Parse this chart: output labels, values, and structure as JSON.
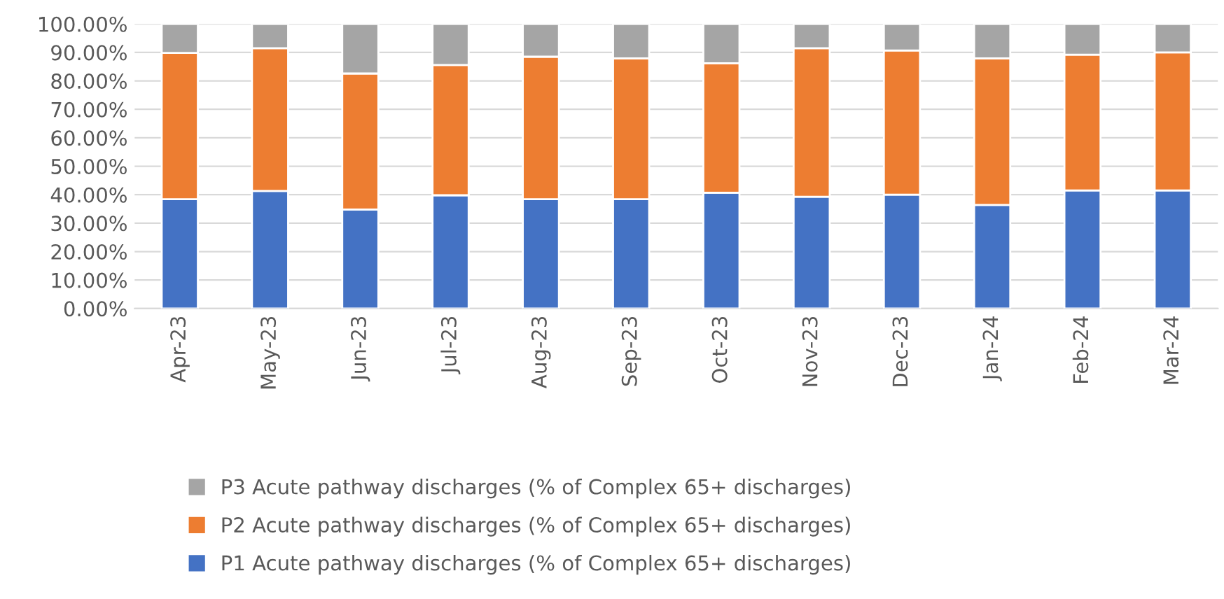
{
  "chart_data": {
    "type": "bar",
    "stacked": true,
    "categories": [
      "Apr-23",
      "May-23",
      "Jun-23",
      "Jul-23",
      "Aug-23",
      "Sep-23",
      "Oct-23",
      "Nov-23",
      "Dec-23",
      "Jan-24",
      "Feb-24",
      "Mar-24"
    ],
    "series": [
      {
        "name": "P1 Acute pathway discharges (% of Complex 65+ discharges)",
        "color": "#4472c4",
        "values": [
          38.4,
          41.3,
          34.8,
          39.8,
          38.4,
          38.4,
          40.7,
          39.3,
          40.0,
          36.4,
          41.5,
          41.5
        ]
      },
      {
        "name": "P2 Acute pathway discharges (% of Complex 65+ discharges)",
        "color": "#ed7d31",
        "values": [
          51.4,
          50.2,
          47.8,
          45.8,
          50.1,
          49.5,
          45.5,
          52.2,
          50.7,
          51.5,
          47.7,
          48.5
        ]
      },
      {
        "name": "P3 Acute pathway discharges (% of Complex 65+ discharges)",
        "color": "#a5a5a5",
        "values": [
          10.2,
          8.5,
          17.4,
          14.4,
          11.5,
          12.1,
          13.8,
          8.5,
          9.3,
          12.1,
          10.8,
          10.0
        ]
      }
    ],
    "ylim": [
      0,
      100
    ],
    "yticks": [
      {
        "value": 0,
        "label": "0.00%"
      },
      {
        "value": 10,
        "label": "10.00%"
      },
      {
        "value": 20,
        "label": "20.00%"
      },
      {
        "value": 30,
        "label": "30.00%"
      },
      {
        "value": 40,
        "label": "40.00%"
      },
      {
        "value": 50,
        "label": "50.00%"
      },
      {
        "value": 60,
        "label": "60.00%"
      },
      {
        "value": 70,
        "label": "70.00%"
      },
      {
        "value": 80,
        "label": "80.00%"
      },
      {
        "value": 90,
        "label": "90.00%"
      },
      {
        "value": 100,
        "label": "100.00%"
      }
    ],
    "grid": "y",
    "legend": "bottom"
  }
}
